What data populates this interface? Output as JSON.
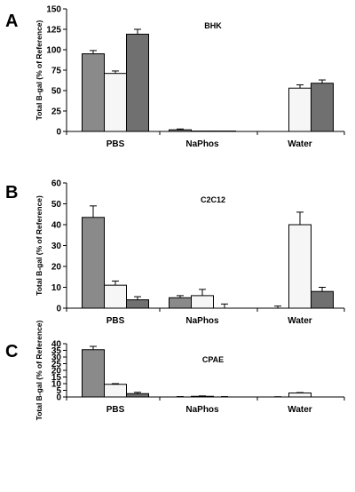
{
  "colors": {
    "series_1": "#8a8a8a",
    "series_2": "#f6f6f6",
    "series_3": "#707070",
    "axis": "#000000"
  },
  "chart_data": [
    {
      "panel_label": "A",
      "type": "bar",
      "title": "BHK",
      "ylabel": "Total B-gal  (% of Reference)",
      "xlabel": "",
      "categories": [
        "PBS",
        "NaPhos",
        "Water"
      ],
      "ylim": [
        0,
        150
      ],
      "yticks": [
        "0",
        "25",
        "50",
        "75",
        "100",
        "125",
        "150"
      ],
      "series": [
        {
          "values": [
            95,
            2,
            0
          ],
          "errors": [
            4,
            1,
            0
          ]
        },
        {
          "values": [
            71,
            0.5,
            53
          ],
          "errors": [
            3,
            0,
            4
          ]
        },
        {
          "values": [
            119,
            0.5,
            59
          ],
          "errors": [
            6,
            0,
            4
          ]
        }
      ]
    },
    {
      "panel_label": "B",
      "type": "bar",
      "title": "C2C12",
      "ylabel": "Total B-gal  (% of Reference)",
      "xlabel": "",
      "categories": [
        "PBS",
        "NaPhos",
        "Water"
      ],
      "ylim": [
        0,
        60
      ],
      "yticks": [
        "0",
        "10",
        "20",
        "30",
        "40",
        "50",
        "60"
      ],
      "series": [
        {
          "values": [
            43.5,
            5,
            0
          ],
          "errors": [
            5.5,
            1,
            1
          ]
        },
        {
          "values": [
            11,
            6,
            40
          ],
          "errors": [
            2,
            3,
            6
          ]
        },
        {
          "values": [
            4,
            0,
            8
          ],
          "errors": [
            1.5,
            2,
            2
          ]
        }
      ]
    },
    {
      "panel_label": "C",
      "type": "bar",
      "title": "CPAE",
      "ylabel": "Total B-gal  (% of Reference)",
      "xlabel": "",
      "categories": [
        "PBS",
        "NaPhos",
        "Water"
      ],
      "ylim": [
        0,
        40
      ],
      "yticks": [
        "0",
        "5",
        "10",
        "15",
        "20",
        "25",
        "30",
        "35",
        "40"
      ],
      "series": [
        {
          "values": [
            35.5,
            0,
            0
          ],
          "errors": [
            2.5,
            0.3,
            0.2
          ]
        },
        {
          "values": [
            9.5,
            0.5,
            3
          ],
          "errors": [
            0.5,
            0.3,
            0.3
          ]
        },
        {
          "values": [
            2.5,
            0,
            0
          ],
          "errors": [
            1,
            0.3,
            0
          ]
        }
      ]
    }
  ]
}
